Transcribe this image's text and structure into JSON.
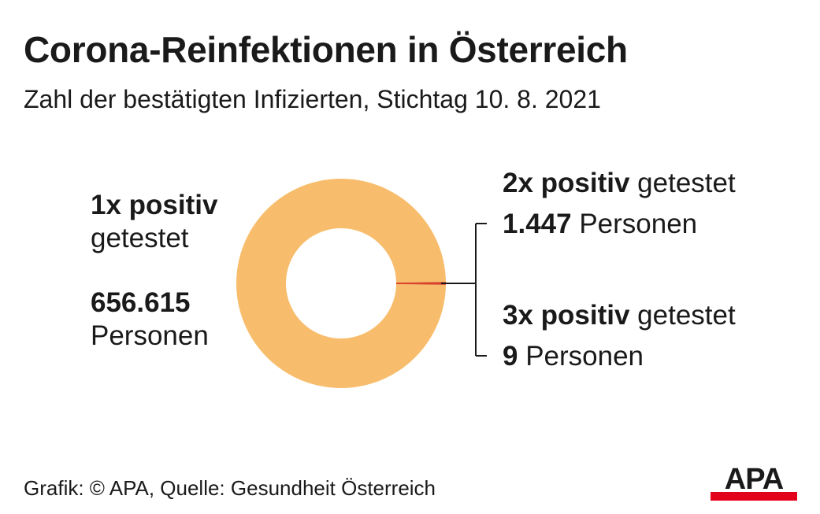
{
  "title": "Corona-Reinfektionen in Österreich",
  "subtitle": "Zahl der bestätigten Infizierten, Stichtag 10. 8. 2021",
  "labels": {
    "first_bold": "1x positiv",
    "first_rest": "getestet",
    "first_value": "656.615",
    "first_unit": "Personen",
    "second_bold": "2x positiv",
    "second_rest": " getestet",
    "second_value": "1.447",
    "second_unit": " Personen",
    "third_bold": "3x positiv",
    "third_rest": " getestet",
    "third_value": "9",
    "third_unit": " Personen"
  },
  "footer": "Grafik: © APA, Quelle: Gesundheit Österreich",
  "logo_text": "APA",
  "colors": {
    "main_slice": "#f8bd6c",
    "reinfection_slice": "#d9452b",
    "text": "#1a1a1a",
    "logo_red": "#e3001b"
  },
  "chart_data": {
    "type": "pie",
    "variant": "donut",
    "slices": [
      {
        "name": "1x positiv getestet",
        "value": 656615,
        "color": "#f8bd6c"
      },
      {
        "name": "2x positiv getestet",
        "value": 1447,
        "color": "#d9452b"
      },
      {
        "name": "3x positiv getestet",
        "value": 9,
        "color": "#d9452b"
      }
    ],
    "unit": "Personen",
    "legend": "none"
  }
}
